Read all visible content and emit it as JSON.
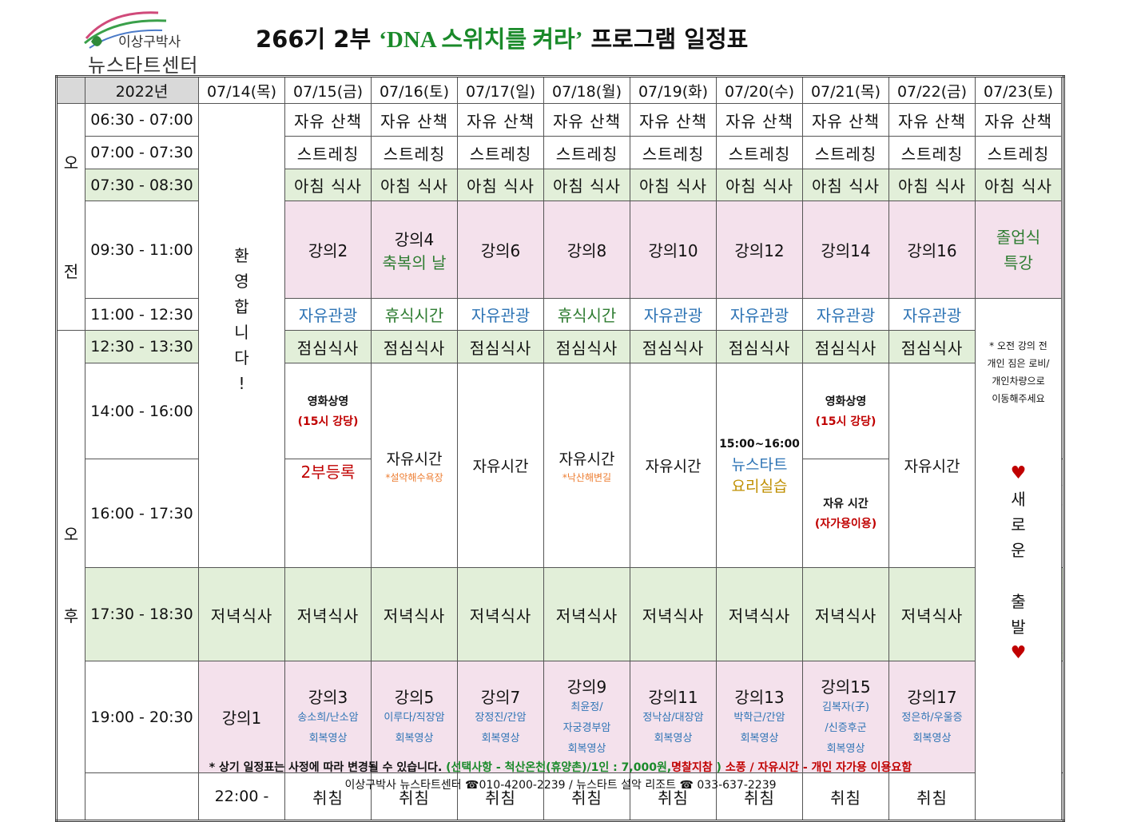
{
  "logo": {
    "line1": "이상구박사",
    "line2": "뉴스타트센터"
  },
  "title": {
    "prefix": "266기 2부 ",
    "highlight": "‘DNA 스위치를 켜라’",
    "suffix": " 프로그램 일정표"
  },
  "header": {
    "year": "2022년",
    "dates": [
      "07/14(목)",
      "07/15(금)",
      "07/16(토)",
      "07/17(일)",
      "07/18(월)",
      "07/19(화)",
      "07/20(수)",
      "07/21(목)",
      "07/22(금)",
      "07/23(토)"
    ]
  },
  "ampm": {
    "am": [
      "오",
      "전"
    ],
    "pm": [
      "오",
      "후"
    ]
  },
  "times": [
    "06:30 - 07:00",
    "07:00 - 07:30",
    "07:30 - 08:30",
    "09:30 - 11:00",
    "11:00 - 12:30",
    "12:30 - 13:30",
    "14:00 - 16:00",
    "16:00 - 17:30",
    "17:30 - 18:30",
    "19:00 - 20:30",
    "22:00 -"
  ],
  "activities": {
    "walk": "자유 산책",
    "stretch": "스트레칭",
    "breakfast": "아침 식사",
    "lunch": "점심식사",
    "dinner": "저녁식사",
    "sleep": "취침",
    "free_tour": "자유관광",
    "rest": "휴식시간",
    "free_time": "자유시간"
  },
  "welcome": [
    "환",
    "영",
    "합",
    "니",
    "다",
    "!"
  ],
  "registration": "2부등록",
  "am_lectures": [
    "강의2",
    "강의4",
    "강의6",
    "강의8",
    "강의10",
    "강의12",
    "강의14",
    "강의16"
  ],
  "blessing": "축복의 날",
  "graduation": [
    "졸업식",
    "특강"
  ],
  "movie": {
    "title": "영화상영",
    "place": "(15시 강당)"
  },
  "free_own": {
    "title": "자유 시간",
    "sub": "(자가용이용)"
  },
  "free_notes": {
    "d16": "*설악해수욕장",
    "d18": "*낙산해변길"
  },
  "cooking": {
    "time": "15:00~16:00",
    "title": "뉴스타트",
    "sub": "요리실습"
  },
  "last_day_note": [
    "* 오전 강의 전",
    "개인 짐은 로비/",
    "개인차량으로",
    "이동해주세요"
  ],
  "new_start": [
    "새",
    "로",
    "운",
    "",
    "출",
    "발"
  ],
  "pm_lectures": [
    {
      "name": "강의1",
      "speaker": "",
      "topic": ""
    },
    {
      "name": "강의3",
      "speaker": "송소희/난소암",
      "topic": "회복영상"
    },
    {
      "name": "강의5",
      "speaker": "이루다/직장암",
      "topic": "회복영상"
    },
    {
      "name": "강의7",
      "speaker": "장정진/간암",
      "topic": "회복영상"
    },
    {
      "name": "강의9",
      "speaker": "최윤정/",
      "speaker2": "자궁경부암",
      "topic": "회복영상"
    },
    {
      "name": "강의11",
      "speaker": "정낙삼/대장암",
      "topic": "회복영상"
    },
    {
      "name": "강의13",
      "speaker": "박학근/간암",
      "topic": "회복영상"
    },
    {
      "name": "강의15",
      "speaker": "김복자(子)",
      "speaker2": "/신증후군",
      "topic": "회복영상"
    },
    {
      "name": "강의17",
      "speaker": "정은하/우울증",
      "topic": "회복영상"
    }
  ],
  "footer": {
    "note_a": "* 상기 일정표는 사정에 따라 변경될 수 있습니다. ",
    "note_b": "(선택사항 - 척산온천(휴양촌)/1인 : 7,000원,",
    "note_c": "명찰지참",
    "note_d": " )",
    "note_e": "  소풍 / 자유시간 - 개인 자가용 이용요함",
    "contact": "이상구박사 뉴스타트센터 ☎010-4200-2239 /  뉴스타트 설악 리조트 ☎ 033-637-2239"
  },
  "colors": {
    "green_row": "#e2efd9",
    "pink_cell": "#f4e1ec",
    "title_green": "#1a8a2a",
    "red": "#c00000",
    "blue": "#2e74b5"
  }
}
